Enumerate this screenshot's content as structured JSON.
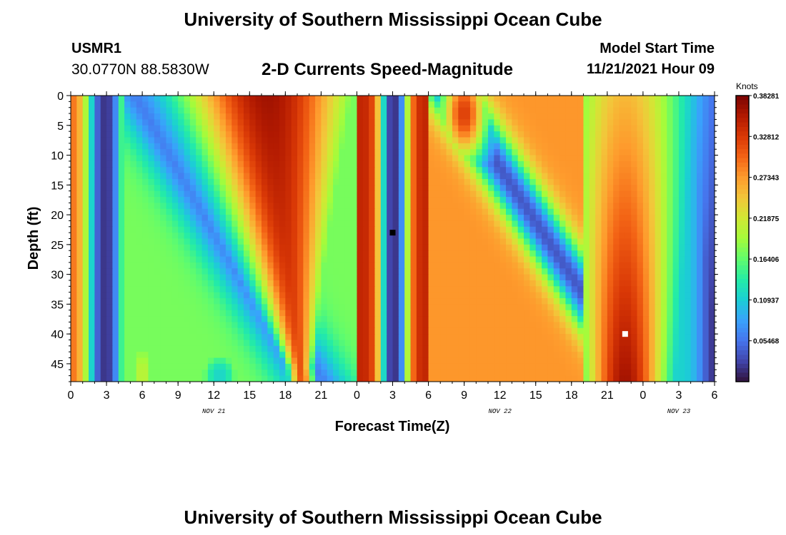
{
  "header": {
    "title": "University of Southern Mississippi Ocean Cube",
    "station": "USMR1",
    "coords": "30.0770N  88.5830W",
    "subtitle": "2-D Currents Speed-Magnitude",
    "start_label": "Model Start Time",
    "start_value": "11/21/2021 Hour 09"
  },
  "footer": {
    "title": "University of Southern Mississippi Ocean Cube"
  },
  "colors": {
    "scale": [
      "#30123b",
      "#4145ab",
      "#4675ed",
      "#39a2fc",
      "#1bcfd4",
      "#24eca6",
      "#61fc6c",
      "#a4fc3b",
      "#d1e834",
      "#f3c63a",
      "#fe9b2d",
      "#f36315",
      "#d93806",
      "#b11901",
      "#7a0402"
    ]
  },
  "chart_data": {
    "type": "heatmap",
    "ylabel": "Depth (ft)",
    "xlabel": "Forecast Time(Z)",
    "ylim": [
      0,
      48
    ],
    "xlim": [
      0,
      54
    ],
    "yticks": [
      0,
      5,
      10,
      15,
      20,
      25,
      30,
      35,
      40,
      45
    ],
    "xtick_labels": [
      "0",
      "3",
      "6",
      "9",
      "12",
      "15",
      "18",
      "21",
      "0",
      "3",
      "6",
      "9",
      "12",
      "15",
      "18",
      "21",
      "0",
      "3",
      "6"
    ],
    "date_labels": [
      {
        "text": "NOV 21",
        "hour": 12
      },
      {
        "text": "NOV 22",
        "hour": 36
      },
      {
        "text": "NOV 23",
        "hour": 51
      }
    ],
    "colorbar": {
      "title": "Knots",
      "min": 0,
      "max": 0.3828,
      "tick_labels": [
        "0.38281",
        "0.32812",
        "0.27343",
        "0.21875",
        "0.16406",
        "0.10937",
        "0.05468"
      ],
      "tick_values": [
        0.38281,
        0.32812,
        0.27343,
        0.21875,
        0.16406,
        0.10937,
        0.05468
      ]
    },
    "markers": [
      {
        "name": "min-marker",
        "hour": 27,
        "depth": 23,
        "color": "#000000"
      },
      {
        "name": "max-marker",
        "hour": 46.5,
        "depth": 40,
        "color": "#ffffff"
      }
    ]
  }
}
